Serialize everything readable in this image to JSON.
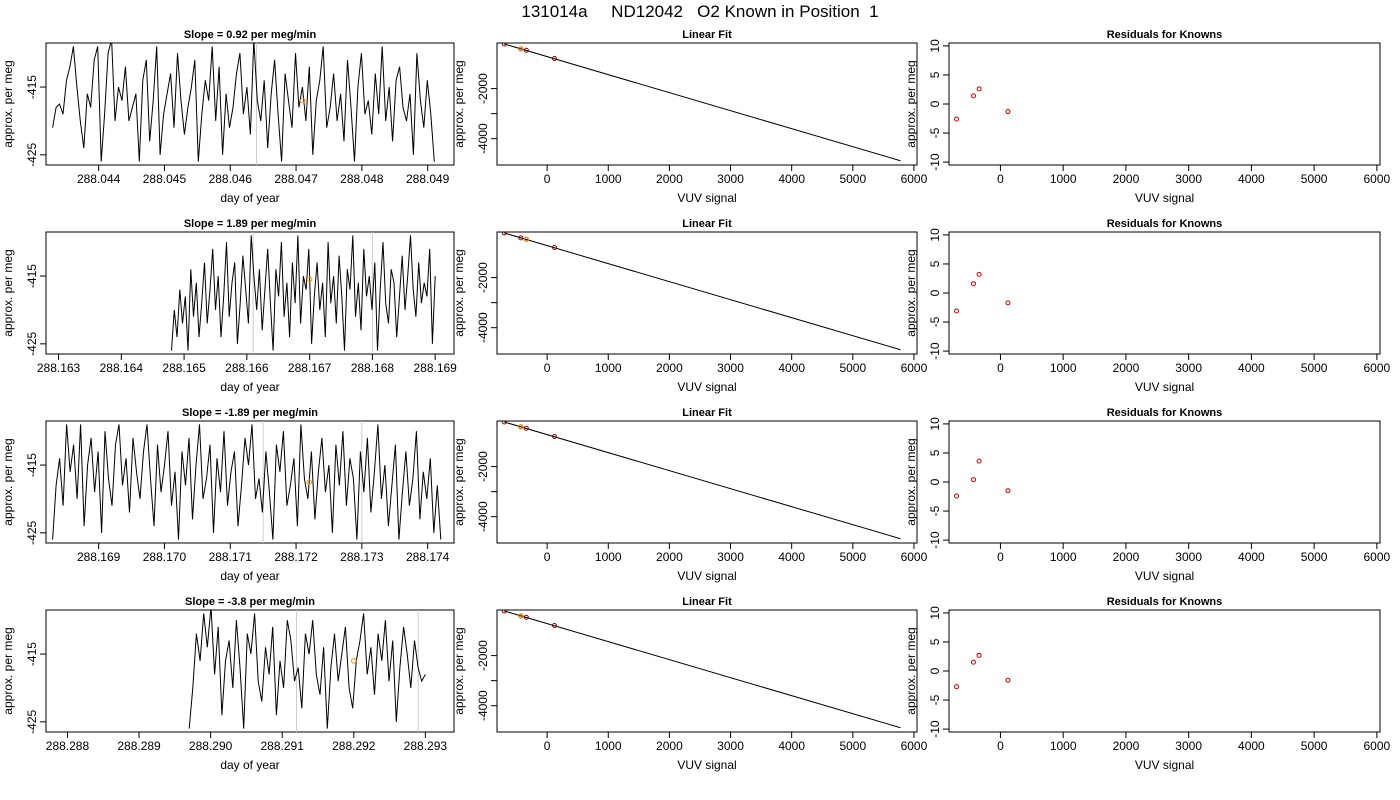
{
  "page": {
    "title": "131014a     ND12042   O2 Known in Position  1"
  },
  "chart_data": [
    {
      "type": "line",
      "row": 1,
      "title": "Slope =  0.92  per meg/min",
      "xlabel": "day of year",
      "ylabel": "approx. per meg",
      "xticks": [
        "288.044",
        "288.045",
        "288.046",
        "288.047",
        "288.048",
        "288.049"
      ],
      "yticks": [
        "-415",
        "-425"
      ],
      "xlim": [
        288.0432,
        288.0494
      ],
      "ylim": [
        -426.5,
        -408.5
      ],
      "x_start": 288.0433,
      "x_end": 288.0491,
      "vlines": [
        288.0464
      ],
      "highlight_point": {
        "x": 288.0471,
        "y": -417.0
      },
      "series": [
        {
          "values": [
            -421,
            -418,
            -417.5,
            -419,
            -414,
            -412,
            -409,
            -415,
            -420,
            -424,
            -416,
            -418,
            -411,
            -409,
            -426,
            -419,
            -410,
            -408,
            -420,
            -415,
            -417,
            -412,
            -420,
            -418,
            -416,
            -426,
            -414,
            -411,
            -423,
            -417,
            -409,
            -425,
            -419,
            -416,
            -413,
            -421,
            -410,
            -417,
            -422,
            -418,
            -415,
            -411,
            -426,
            -419,
            -414,
            -417,
            -409,
            -420,
            -412,
            -425,
            -416,
            -421,
            -418,
            -413,
            -410,
            -419,
            -415,
            -422,
            -408,
            -417,
            -420,
            -414,
            -424,
            -416,
            -411,
            -419,
            -426,
            -413,
            -417,
            -421,
            -410,
            -418,
            -415,
            -420,
            -412,
            -425,
            -417,
            -414,
            -409,
            -421,
            -418,
            -413,
            -420,
            -416,
            -423,
            -411,
            -418,
            -426,
            -415,
            -410,
            -419,
            -417,
            -422,
            -413,
            -419,
            -409,
            -420,
            -415,
            -423,
            -414,
            -412,
            -418,
            -420,
            -416,
            -425,
            -410,
            -417,
            -421,
            -414,
            -419,
            -426
          ]
        }
      ]
    },
    {
      "type": "scatter",
      "row": 1,
      "title": "Linear Fit",
      "xlabel": "VUV signal",
      "ylabel": "approx. per meg",
      "xticks": [
        0,
        1000,
        2000,
        3000,
        4000,
        5000,
        6000
      ],
      "yticks": [
        -2000,
        -3000,
        -4000
      ],
      "ytick_labels_shown": [
        "-2000",
        "-4000"
      ],
      "xlim": [
        -820,
        6050
      ],
      "ylim": [
        -5050,
        -180
      ],
      "points": [
        {
          "x": -700,
          "y": -220
        },
        {
          "x": -430,
          "y": -415
        },
        {
          "x": -340,
          "y": -470
        },
        {
          "x": 120,
          "y": -800
        }
      ],
      "highlight_point": {
        "x": -430,
        "y": -415
      },
      "fit_line": {
        "x": [
          -700,
          5780
        ],
        "y": [
          -220,
          -4880
        ]
      }
    },
    {
      "type": "scatter",
      "row": 1,
      "title": "Residuals for Knowns",
      "xlabel": "VUV signal",
      "ylabel": "approx. per meg",
      "xticks": [
        0,
        1000,
        2000,
        3000,
        4000,
        5000,
        6000
      ],
      "yticks": [
        10,
        5,
        0,
        -5,
        -10
      ],
      "xlim": [
        -820,
        6050
      ],
      "ylim": [
        -10.5,
        10.5
      ],
      "points": [
        {
          "x": -700,
          "y": -2.6
        },
        {
          "x": -430,
          "y": 1.4
        },
        {
          "x": -340,
          "y": 2.6
        },
        {
          "x": 120,
          "y": -1.3
        }
      ]
    },
    {
      "type": "line",
      "row": 2,
      "title": "Slope =  1.89  per meg/min",
      "xlabel": "day of year",
      "ylabel": "approx. per meg",
      "xticks": [
        "288.163",
        "288.164",
        "288.165",
        "288.166",
        "288.167",
        "288.168",
        "288.169"
      ],
      "yticks": [
        "-415",
        "-425"
      ],
      "xlim": [
        288.1628,
        288.1693
      ],
      "ylim": [
        -426.5,
        -408.5
      ],
      "x_start": 288.1648,
      "x_end": 288.169,
      "vlines": [
        288.1661,
        288.168
      ],
      "highlight_point": {
        "x": 288.167,
        "y": -415.5
      },
      "series": [
        {
          "values": [
            -426,
            -420,
            -424,
            -417,
            -422,
            -418,
            -426,
            -414,
            -421,
            -416,
            -424,
            -419,
            -413,
            -422,
            -417,
            -411,
            -420,
            -415,
            -424,
            -418,
            -410,
            -421,
            -416,
            -413,
            -425,
            -419,
            -412,
            -417,
            -422,
            -409,
            -415,
            -420,
            -414,
            -423,
            -417,
            -411,
            -419,
            -426,
            -414,
            -418,
            -410,
            -421,
            -416,
            -424,
            -413,
            -419,
            -409,
            -422,
            -415,
            -417,
            -411,
            -425,
            -418,
            -413,
            -420,
            -416,
            -424,
            -410,
            -419,
            -415,
            -422,
            -412,
            -418,
            -426,
            -414,
            -417,
            -409,
            -421,
            -416,
            -423,
            -411,
            -418,
            -415,
            -420,
            -413,
            -426,
            -417,
            -410,
            -419,
            -422,
            -414,
            -416,
            -424,
            -418,
            -412,
            -420,
            -415,
            -409,
            -417,
            -421,
            -413,
            -419,
            -416,
            -418,
            -411,
            -425,
            -415
          ]
        }
      ]
    },
    {
      "type": "scatter",
      "row": 2,
      "title": "Linear Fit",
      "xlabel": "VUV signal",
      "ylabel": "approx. per meg",
      "xticks": [
        0,
        1000,
        2000,
        3000,
        4000,
        5000,
        6000
      ],
      "yticks": [
        -2000,
        -3000,
        -4000
      ],
      "ytick_labels_shown": [
        "-2000",
        "-4000"
      ],
      "xlim": [
        -820,
        6050
      ],
      "ylim": [
        -5050,
        -180
      ],
      "points": [
        {
          "x": -700,
          "y": -220
        },
        {
          "x": -430,
          "y": -415
        },
        {
          "x": -340,
          "y": -470
        },
        {
          "x": 120,
          "y": -800
        }
      ],
      "highlight_point": {
        "x": -340,
        "y": -470
      },
      "fit_line": {
        "x": [
          -700,
          5780
        ],
        "y": [
          -220,
          -4880
        ]
      }
    },
    {
      "type": "scatter",
      "row": 2,
      "title": "Residuals for Knowns",
      "xlabel": "VUV signal",
      "ylabel": "approx. per meg",
      "xticks": [
        0,
        1000,
        2000,
        3000,
        4000,
        5000,
        6000
      ],
      "yticks": [
        10,
        5,
        0,
        -5,
        -10
      ],
      "xlim": [
        -820,
        6050
      ],
      "ylim": [
        -10.5,
        10.5
      ],
      "points": [
        {
          "x": -700,
          "y": -3.1
        },
        {
          "x": -430,
          "y": 1.6
        },
        {
          "x": -340,
          "y": 3.2
        },
        {
          "x": 120,
          "y": -1.7
        }
      ]
    },
    {
      "type": "line",
      "row": 3,
      "title": "Slope =  -1.89  per meg/min",
      "xlabel": "day of year",
      "ylabel": "approx. per meg",
      "xticks": [
        "288.169",
        "288.170",
        "288.171",
        "288.172",
        "288.173",
        "288.174"
      ],
      "yticks": [
        "-415",
        "-425"
      ],
      "xlim": [
        288.1682,
        288.1744
      ],
      "ylim": [
        -426.5,
        -408.5
      ],
      "x_start": 288.1683,
      "x_end": 288.1742,
      "vlines": [
        288.1715,
        288.173
      ],
      "highlight_point": {
        "x": 288.1722,
        "y": -417.5
      },
      "series": [
        {
          "values": [
            -426,
            -418,
            -414,
            -421,
            -409,
            -416,
            -412,
            -420,
            -409,
            -424,
            -415,
            -411,
            -419,
            -413,
            -425,
            -410,
            -417,
            -421,
            -412,
            -409,
            -418,
            -414,
            -422,
            -411,
            -416,
            -420,
            -413,
            -409,
            -417,
            -424,
            -412,
            -419,
            -415,
            -410,
            -421,
            -416,
            -426,
            -413,
            -418,
            -411,
            -423,
            -415,
            -409,
            -420,
            -417,
            -412,
            -425,
            -414,
            -419,
            -410,
            -421,
            -416,
            -413,
            -424,
            -418,
            -411,
            -415,
            -409,
            -420,
            -417,
            -422,
            -413,
            -419,
            -426,
            -412,
            -416,
            -410,
            -421,
            -418,
            -414,
            -424,
            -409,
            -417,
            -420,
            -413,
            -423,
            -416,
            -411,
            -419,
            -415,
            -425,
            -412,
            -418,
            -410,
            -421,
            -414,
            -417,
            -426,
            -413,
            -419,
            -411,
            -422,
            -416,
            -409,
            -420,
            -415,
            -424,
            -418,
            -412,
            -426,
            -419,
            -413,
            -421,
            -417,
            -410,
            -423,
            -416,
            -420,
            -414,
            -425,
            -418,
            -426
          ]
        }
      ]
    },
    {
      "type": "scatter",
      "row": 3,
      "title": "Linear Fit",
      "xlabel": "VUV signal",
      "ylabel": "approx. per meg",
      "xticks": [
        0,
        1000,
        2000,
        3000,
        4000,
        5000,
        6000
      ],
      "yticks": [
        -2000,
        -3000,
        -4000
      ],
      "ytick_labels_shown": [
        "-2000",
        "-4000"
      ],
      "xlim": [
        -820,
        6050
      ],
      "ylim": [
        -5050,
        -180
      ],
      "points": [
        {
          "x": -700,
          "y": -220
        },
        {
          "x": -430,
          "y": -415
        },
        {
          "x": -340,
          "y": -470
        },
        {
          "x": 120,
          "y": -800
        }
      ],
      "highlight_point": {
        "x": -430,
        "y": -415
      },
      "fit_line": {
        "x": [
          -700,
          5780
        ],
        "y": [
          -220,
          -4880
        ]
      }
    },
    {
      "type": "scatter",
      "row": 3,
      "title": "Residuals for Knowns",
      "xlabel": "VUV signal",
      "ylabel": "approx. per meg",
      "xticks": [
        0,
        1000,
        2000,
        3000,
        4000,
        5000,
        6000
      ],
      "yticks": [
        10,
        5,
        0,
        -5,
        -10
      ],
      "xlim": [
        -820,
        6050
      ],
      "ylim": [
        -10.5,
        10.5
      ],
      "points": [
        {
          "x": -700,
          "y": -2.4
        },
        {
          "x": -430,
          "y": 0.4
        },
        {
          "x": -340,
          "y": 3.6
        },
        {
          "x": 120,
          "y": -1.5
        }
      ]
    },
    {
      "type": "line",
      "row": 4,
      "title": "Slope =  -3.8  per meg/min",
      "xlabel": "day of year",
      "ylabel": "approx. per meg",
      "xticks": [
        "288.288",
        "288.289",
        "288.290",
        "288.291",
        "288.292",
        "288.293"
      ],
      "yticks": [
        "-415",
        "-425"
      ],
      "xlim": [
        288.2877,
        288.2934
      ],
      "ylim": [
        -426.5,
        -408.5
      ],
      "x_start": 288.2897,
      "x_end": 288.293,
      "vlines": [
        288.2912,
        288.2929
      ],
      "highlight_point": {
        "x": 288.292,
        "y": -416.0
      },
      "series": [
        {
          "values": [
            -426,
            -420,
            -412,
            -416,
            -409,
            -414,
            -408,
            -418,
            -411,
            -424,
            -416,
            -413,
            -420,
            -410,
            -417,
            -426,
            -412,
            -415,
            -409,
            -419,
            -422,
            -414,
            -418,
            -411,
            -424,
            -416,
            -420,
            -410,
            -413,
            -419,
            -417,
            -423,
            -412,
            -415,
            -410,
            -418,
            -421,
            -414,
            -426,
            -417,
            -412,
            -419,
            -415,
            -411,
            -420,
            -423,
            -416,
            -413,
            -409,
            -418,
            -414,
            -421,
            -412,
            -416,
            -410,
            -419,
            -413,
            -425,
            -417,
            -411,
            -415,
            -420,
            -413,
            -417,
            -419,
            -418
          ]
        }
      ]
    },
    {
      "type": "scatter",
      "row": 4,
      "title": "Linear Fit",
      "xlabel": "VUV signal",
      "ylabel": "approx. per meg",
      "xticks": [
        0,
        1000,
        2000,
        3000,
        4000,
        5000,
        6000
      ],
      "yticks": [
        -2000,
        -3000,
        -4000
      ],
      "ytick_labels_shown": [
        "-2000",
        "-4000"
      ],
      "xlim": [
        -820,
        6050
      ],
      "ylim": [
        -5050,
        -180
      ],
      "points": [
        {
          "x": -700,
          "y": -220
        },
        {
          "x": -430,
          "y": -415
        },
        {
          "x": -340,
          "y": -470
        },
        {
          "x": 120,
          "y": -800
        }
      ],
      "highlight_point": {
        "x": -430,
        "y": -415
      },
      "fit_line": {
        "x": [
          -700,
          5780
        ],
        "y": [
          -220,
          -4880
        ]
      }
    },
    {
      "type": "scatter",
      "row": 4,
      "title": "Residuals for Knowns",
      "xlabel": "VUV signal",
      "ylabel": "approx. per meg",
      "xticks": [
        0,
        1000,
        2000,
        3000,
        4000,
        5000,
        6000
      ],
      "yticks": [
        10,
        5,
        0,
        -5,
        -10
      ],
      "xlim": [
        -820,
        6050
      ],
      "ylim": [
        -10.5,
        10.5
      ],
      "points": [
        {
          "x": -700,
          "y": -2.7
        },
        {
          "x": -430,
          "y": 1.5
        },
        {
          "x": -340,
          "y": 2.7
        },
        {
          "x": 120,
          "y": -1.6
        }
      ]
    }
  ],
  "colors": {
    "line": "#000000",
    "residual_point": "#cc0000",
    "fit_point": "#8b0000",
    "highlight": "#ff9900",
    "vline": "#cccccc",
    "axis": "#000000"
  }
}
